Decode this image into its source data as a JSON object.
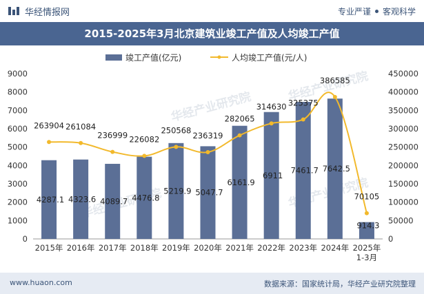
{
  "header": {
    "brand": "华经情报网",
    "tag1": "专业严谨",
    "tag2": "客观科学"
  },
  "footer": {
    "website": "www.huaon.com",
    "source": "数据来源：国家统计局，华经产业研究院整理"
  },
  "chart_data": {
    "type": "bar",
    "title": "2015-2025年3月北京建筑业竣工产值及人均竣工产值",
    "categories": [
      "2015年",
      "2016年",
      "2017年",
      "2018年",
      "2019年",
      "2020年",
      "2021年",
      "2022年",
      "2023年",
      "2024年",
      "2025年\n1-3月"
    ],
    "series": [
      {
        "name": "竣工产值(亿元)",
        "type": "bar",
        "axis": "left",
        "color": "#5b6f96",
        "values": [
          4287.1,
          4323.6,
          4089.7,
          4476.8,
          5219.9,
          5047.7,
          6161.9,
          6911,
          7461.7,
          7642.5,
          914.3
        ],
        "labels": [
          "4287.1",
          "4323.6",
          "4089.7",
          "4476.8",
          "5219.9",
          "5047.7",
          "6161.9",
          "6911",
          "7461.7",
          "7642.5",
          "914.3"
        ]
      },
      {
        "name": "人均竣工产值(元/人)",
        "type": "line",
        "axis": "right",
        "color": "#f2b92c",
        "values": [
          263904,
          261084,
          236999,
          226082,
          250568,
          236319,
          282065,
          314630,
          325375,
          386585,
          70105
        ],
        "labels": [
          "263904",
          "261084",
          "236999",
          "226082",
          "250568",
          "236319",
          "282065",
          "314630",
          "325375",
          "386585",
          "70105"
        ]
      }
    ],
    "y_left": {
      "min": 0,
      "max": 9000,
      "ticks": [
        "0",
        "1000",
        "2000",
        "3000",
        "4000",
        "5000",
        "6000",
        "7000",
        "8000",
        "9000"
      ]
    },
    "y_right": {
      "min": 0,
      "max": 450000,
      "ticks": [
        "0",
        "50000",
        "100000",
        "150000",
        "200000",
        "250000",
        "300000",
        "350000",
        "400000",
        "450000"
      ]
    },
    "legend_position": "top-center",
    "grid": false,
    "watermark": "华经产业研究院"
  }
}
